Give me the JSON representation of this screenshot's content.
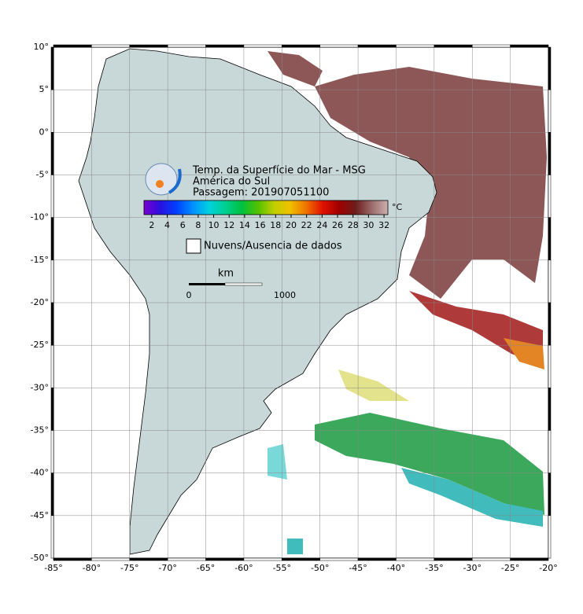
{
  "header": {
    "title_lines": [
      "Temp. da Superfície do Mar - MSG",
      "América do Sul",
      "Passagem: 201907051100"
    ]
  },
  "colorbar": {
    "unit": "°C",
    "lim": [
      1,
      32.5
    ],
    "ticks": [
      2,
      4,
      6,
      8,
      10,
      12,
      14,
      16,
      18,
      20,
      22,
      24,
      26,
      28,
      30,
      32
    ],
    "colors": [
      "#7a00d0",
      "#2a10e0",
      "#0040ff",
      "#0090ff",
      "#00d0e0",
      "#00d090",
      "#00c040",
      "#50c000",
      "#c0d000",
      "#f0c000",
      "#f07000",
      "#e01000",
      "#a00000",
      "#6e1c1c",
      "#9a6a6a",
      "#d0b0b0"
    ]
  },
  "legend": {
    "label": "Nuvens/Ausencia de dados"
  },
  "scale_bar": {
    "unit": "km",
    "ticks": [
      0,
      1000
    ]
  },
  "map": {
    "xlim": [
      -85,
      -20
    ],
    "ylim": [
      -50,
      10
    ],
    "grid": true,
    "xticks": [
      {
        "value": -85,
        "label": "-85°"
      },
      {
        "value": -80,
        "label": "-80°"
      },
      {
        "value": -75,
        "label": "-75°"
      },
      {
        "value": -70,
        "label": "-70°"
      },
      {
        "value": -65,
        "label": "-65°"
      },
      {
        "value": -60,
        "label": "-60°"
      },
      {
        "value": -55,
        "label": "-55°"
      },
      {
        "value": -50,
        "label": "-50°"
      },
      {
        "value": -45,
        "label": "-45°"
      },
      {
        "value": -40,
        "label": "-40°"
      },
      {
        "value": -35,
        "label": "-35°"
      },
      {
        "value": -30,
        "label": "-30°"
      },
      {
        "value": -25,
        "label": "-25°"
      },
      {
        "value": -20,
        "label": "-20°"
      }
    ],
    "yticks": [
      {
        "value": 10,
        "label": "10°"
      },
      {
        "value": 5,
        "label": "5°"
      },
      {
        "value": 0,
        "label": "0°"
      },
      {
        "value": -5,
        "label": "-5°"
      },
      {
        "value": -10,
        "label": "-10°"
      },
      {
        "value": -15,
        "label": "-15°"
      },
      {
        "value": -20,
        "label": "-20°"
      },
      {
        "value": -25,
        "label": "-25°"
      },
      {
        "value": -30,
        "label": "-30°"
      },
      {
        "value": -35,
        "label": "-35°"
      },
      {
        "value": -40,
        "label": "-40°"
      },
      {
        "value": -45,
        "label": "-45°"
      },
      {
        "value": -50,
        "label": "-50°"
      }
    ]
  }
}
